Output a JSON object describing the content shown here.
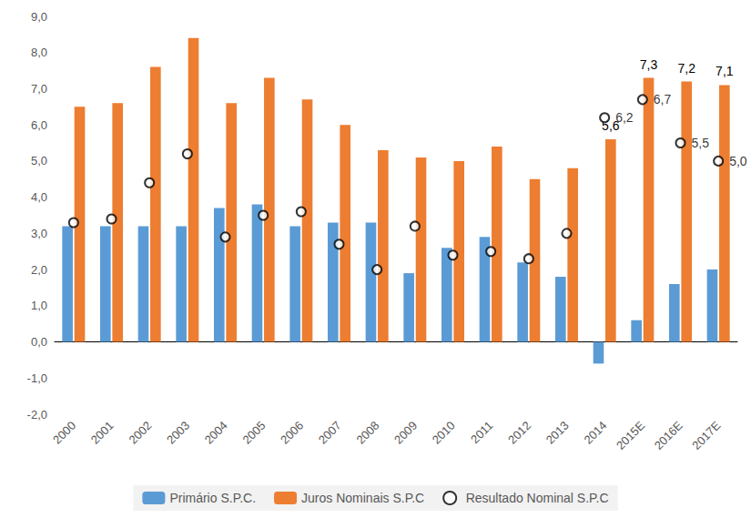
{
  "chart_data": {
    "type": "bar",
    "categories": [
      "2000",
      "2001",
      "2002",
      "2003",
      "2004",
      "2005",
      "2006",
      "2007",
      "2008",
      "2009",
      "2010",
      "2011",
      "2012",
      "2013",
      "2014",
      "2015E",
      "2016E",
      "2017E"
    ],
    "series": [
      {
        "name": "Primário S.P.C.",
        "type": "bar",
        "color": "#5b9bd5",
        "values": [
          3.2,
          3.2,
          3.2,
          3.2,
          3.7,
          3.8,
          3.2,
          3.3,
          3.3,
          1.9,
          2.6,
          2.9,
          2.2,
          1.8,
          -0.6,
          0.6,
          1.6,
          2.0
        ]
      },
      {
        "name": "Juros Nominais S.P.C",
        "type": "bar",
        "color": "#ed7d31",
        "values": [
          6.5,
          6.6,
          7.6,
          8.4,
          6.6,
          7.3,
          6.7,
          6.0,
          5.3,
          5.1,
          5.0,
          5.4,
          4.5,
          4.8,
          5.6,
          7.3,
          7.2,
          7.1
        ],
        "value_labels": [
          null,
          null,
          null,
          null,
          null,
          null,
          null,
          null,
          null,
          null,
          null,
          null,
          null,
          null,
          "5,6",
          "7,3",
          "7,2",
          "7,1"
        ]
      },
      {
        "name": "Resultado Nominal S.P.C",
        "type": "scatter",
        "marker": "circle",
        "color": "#000000",
        "values": [
          3.3,
          3.4,
          4.4,
          5.2,
          2.9,
          3.5,
          3.6,
          2.7,
          2.0,
          3.2,
          2.4,
          2.5,
          2.3,
          3.0,
          6.2,
          6.7,
          5.5,
          5.0
        ],
        "value_labels": [
          null,
          null,
          null,
          null,
          null,
          null,
          null,
          null,
          null,
          null,
          null,
          null,
          null,
          null,
          "6,2",
          "6,7",
          "5,5",
          "5,0"
        ]
      }
    ],
    "ylim": [
      -2,
      9
    ],
    "yticks": [
      {
        "value": -2,
        "label": "-2,0"
      },
      {
        "value": -1,
        "label": "-1,0"
      },
      {
        "value": 0,
        "label": "0,0"
      },
      {
        "value": 1,
        "label": "1,0"
      },
      {
        "value": 2,
        "label": "2,0"
      },
      {
        "value": 3,
        "label": "3,0"
      },
      {
        "value": 4,
        "label": "4,0"
      },
      {
        "value": 5,
        "label": "5,0"
      },
      {
        "value": 6,
        "label": "6,0"
      },
      {
        "value": 7,
        "label": "7,0"
      },
      {
        "value": 8,
        "label": "8,0"
      },
      {
        "value": 9,
        "label": "9,0"
      }
    ],
    "grid": false,
    "legend": "bottom",
    "data_labels": true
  }
}
